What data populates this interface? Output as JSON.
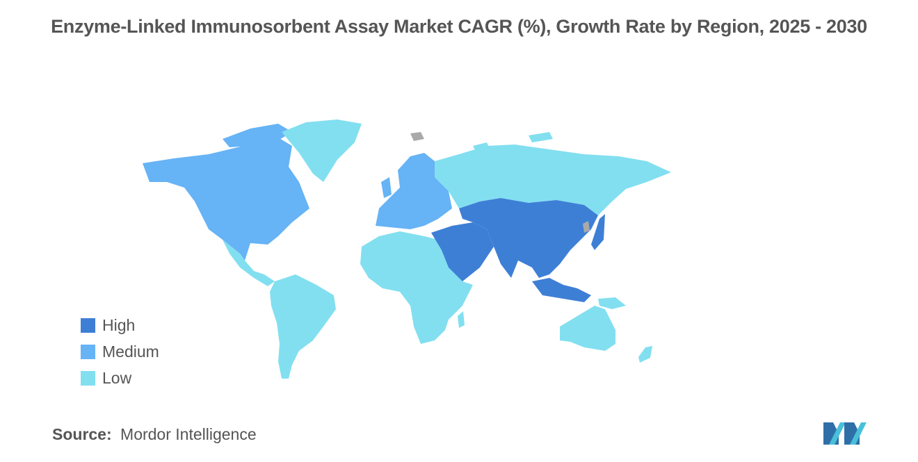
{
  "title": "Enzyme-Linked Immunosorbent Assay Market CAGR (%), Growth Rate by Region, 2025 - 2030",
  "legend": [
    {
      "label": "High",
      "color": "#3e7fd6"
    },
    {
      "label": "Medium",
      "color": "#66b3f5"
    },
    {
      "label": "Low",
      "color": "#82dff0"
    }
  ],
  "colors": {
    "high": "#3e7fd6",
    "medium": "#66b3f5",
    "low": "#82dff0",
    "no_data": "#a9a9a9"
  },
  "regions": {
    "north_america": "Medium",
    "europe": "Medium",
    "asia_pacific": "High",
    "middle_east": "High",
    "latin_america": "Low",
    "africa": "Low",
    "russia": "Low",
    "oceania": "Low"
  },
  "source": {
    "label": "Source:",
    "text": "Mordor Intelligence"
  },
  "logo": {
    "icon": "mordor-intelligence-logo"
  }
}
